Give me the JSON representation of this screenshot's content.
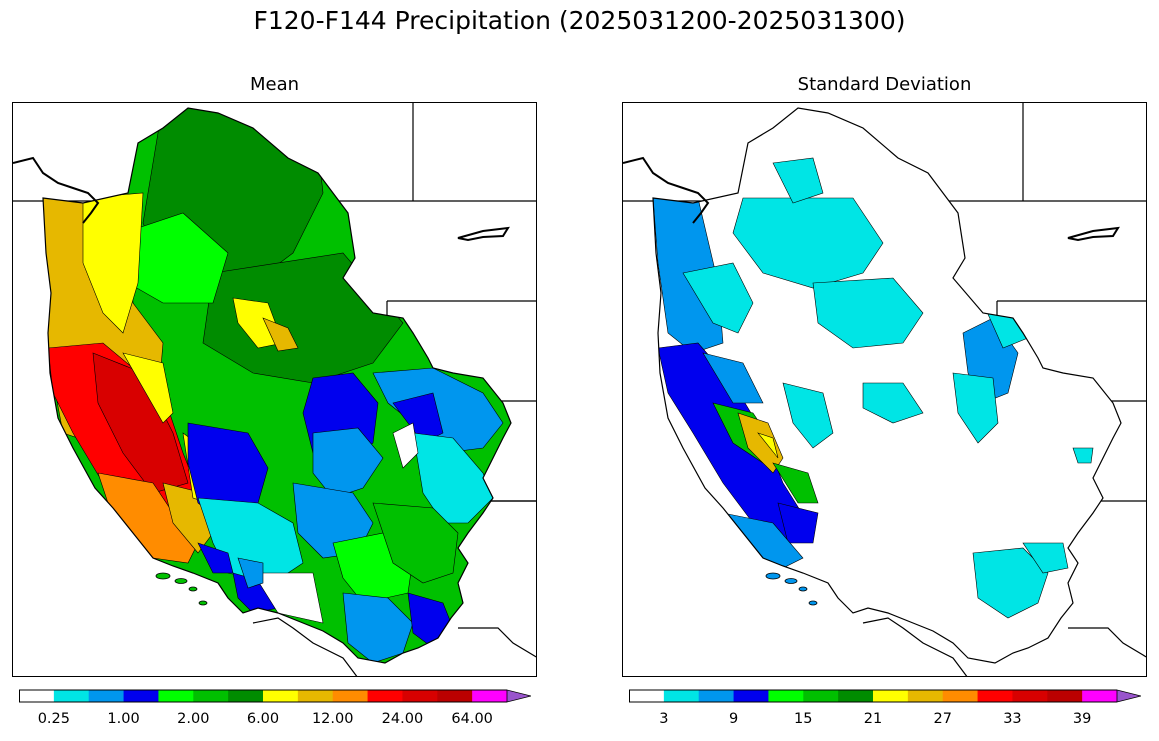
{
  "title": "F120-F144 Precipitation (2025031200-2025031300)",
  "panels": [
    {
      "id": "mean",
      "title": "Mean",
      "colorbar": {
        "colors": [
          "#ffffff",
          "#00e5e5",
          "#0096ee",
          "#0000ee",
          "#00ff00",
          "#00c000",
          "#008c00",
          "#ffff00",
          "#e6b800",
          "#ff8c00",
          "#ff0000",
          "#d80000",
          "#bb0000",
          "#ff00ff",
          "#9955cc"
        ],
        "extend": "max",
        "tick_labels": [
          "0.25",
          "1.00",
          "2.00",
          "6.00",
          "12.00",
          "24.00",
          "64.00"
        ]
      }
    },
    {
      "id": "stddev",
      "title": "Standard Deviation",
      "colorbar": {
        "colors": [
          "#ffffff",
          "#00e5e5",
          "#0096ee",
          "#0000ee",
          "#00ff00",
          "#00c000",
          "#008c00",
          "#ffff00",
          "#e6b800",
          "#ff8c00",
          "#ff0000",
          "#d80000",
          "#bb0000",
          "#ff00ff",
          "#9955cc"
        ],
        "extend": "max",
        "tick_labels": [
          "3",
          "9",
          "15",
          "21",
          "27",
          "33",
          "39"
        ]
      }
    }
  ]
}
